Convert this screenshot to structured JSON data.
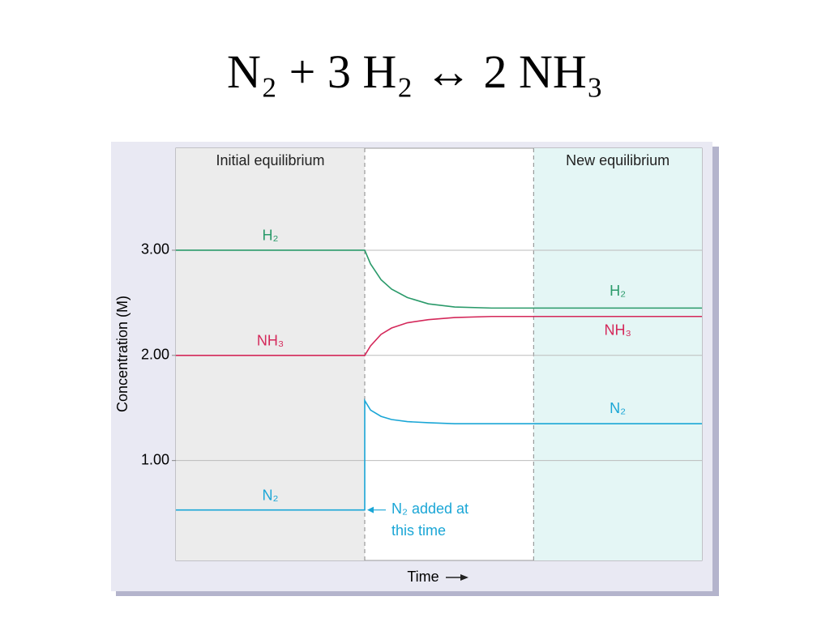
{
  "chart_data": {
    "type": "line",
    "title": "N₂ + 3 H₂ ↔ 2 NH₃",
    "ylabel": "Concentration (M)",
    "xlabel": "Time",
    "x": [
      0,
      3.59,
      3.59,
      3.7,
      3.9,
      4.1,
      4.4,
      4.8,
      5.3,
      6,
      10
    ],
    "xlim": [
      0,
      10
    ],
    "ylim": [
      0.05,
      3.97
    ],
    "yticks": [
      {
        "value": 1,
        "label": "1.00"
      },
      {
        "value": 2,
        "label": "2.00"
      },
      {
        "value": 3,
        "label": "3.00"
      }
    ],
    "grid": true,
    "series": [
      {
        "name": "H₂",
        "color": "#2a9a6a",
        "values": [
          3.0,
          3.0,
          3.0,
          2.87,
          2.72,
          2.63,
          2.55,
          2.49,
          2.46,
          2.45,
          2.45
        ]
      },
      {
        "name": "NH₃",
        "color": "#d4285a",
        "values": [
          2.0,
          2.0,
          2.0,
          2.09,
          2.2,
          2.26,
          2.31,
          2.34,
          2.36,
          2.37,
          2.37
        ]
      },
      {
        "name": "N₂",
        "color": "#1aa6d6",
        "values": [
          0.53,
          0.53,
          1.57,
          1.48,
          1.42,
          1.39,
          1.37,
          1.36,
          1.35,
          1.35,
          1.35
        ]
      }
    ],
    "regions": [
      {
        "label": "Initial equilibrium",
        "x": [
          0,
          3.59
        ],
        "color": "#ececec"
      },
      {
        "label": "New equilibrium",
        "x": [
          6.8,
          10
        ],
        "color": "#e4f6f5"
      }
    ],
    "annotation": {
      "text": "N₂ added at this time",
      "x": 3.59,
      "y": 0.53
    }
  }
}
